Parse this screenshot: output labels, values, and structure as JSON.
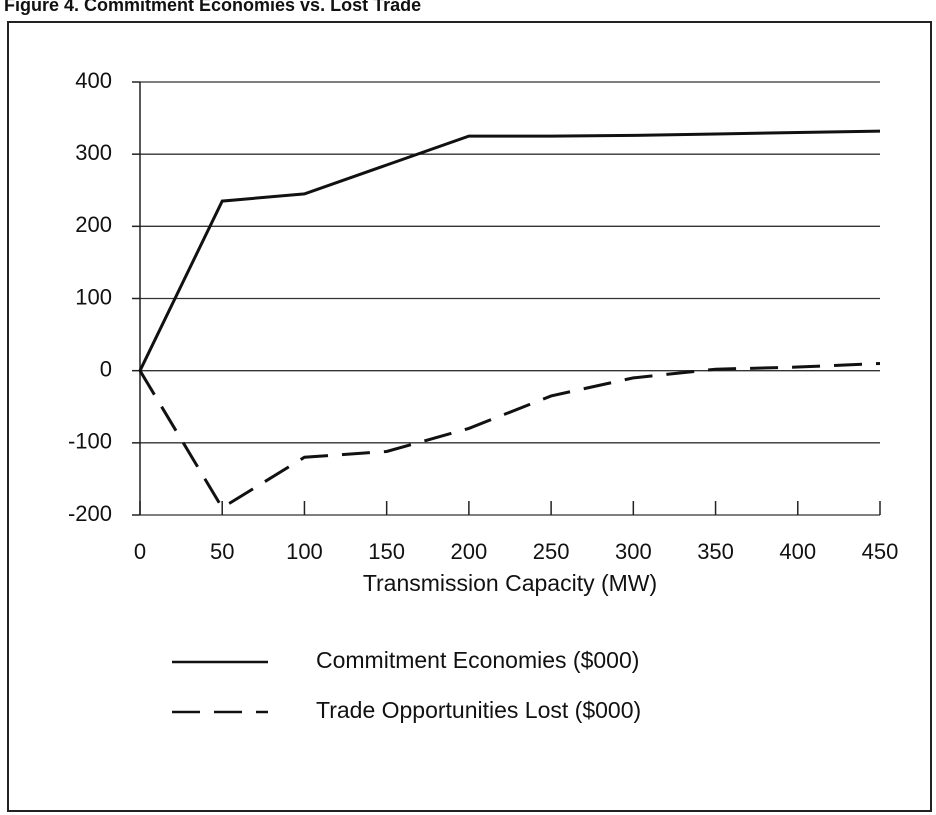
{
  "chart_data": {
    "type": "line",
    "title": "Figure 4. Commitment Economies vs. Lost Trade",
    "x_label": "Transmission Capacity (MW)",
    "x": [
      0,
      50,
      100,
      150,
      200,
      250,
      300,
      350,
      400,
      450
    ],
    "series": [
      {
        "name": "Commitment Economies ($000)",
        "color": "#111111",
        "dash": "solid",
        "values": [
          0,
          235,
          245,
          285,
          325,
          325,
          326,
          328,
          330,
          332
        ]
      },
      {
        "name": "Trade Opportunities Lost ($000)",
        "color": "#111111",
        "dash": "dashed",
        "values": [
          0,
          -190,
          -120,
          -112,
          -80,
          -35,
          -10,
          2,
          5,
          10
        ]
      }
    ],
    "xlim": [
      0,
      450
    ],
    "xticks": [
      0,
      50,
      100,
      150,
      200,
      250,
      300,
      350,
      400,
      450
    ],
    "ylim": [
      -200,
      400
    ],
    "yticks": [
      -200,
      -100,
      0,
      100,
      200,
      300,
      400
    ],
    "grid": true,
    "legend": "bottom"
  }
}
